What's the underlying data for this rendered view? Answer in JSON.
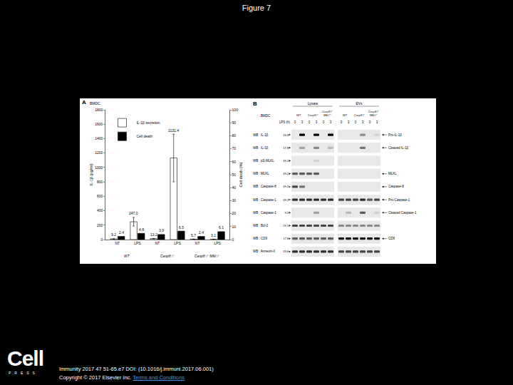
{
  "header": {
    "title": "Figure 7"
  },
  "panel_a": {
    "label": "A",
    "cell_type": "BMDC"
  },
  "chart_data": {
    "type": "bar",
    "categories": [
      "NT",
      "LPS",
      "NT",
      "LPS",
      "NT",
      "LPS"
    ],
    "category_groups": [
      "WT",
      "WT",
      "Casp8⁻/⁻",
      "Casp8⁻/⁻",
      "Casp8⁻/⁻ Mlkl⁻/⁻",
      "Casp8⁻/⁻ Mlkl⁻/⁻"
    ],
    "series": [
      {
        "name": "IL-1β secretion",
        "color": "#ffffff",
        "values": [
          9.2,
          247.0,
          13.2,
          1131.4,
          5.7,
          3.1
        ],
        "value_labels": [
          "9.2",
          "247.0",
          "13.2",
          "1131.4",
          "5.7",
          "3.1"
        ],
        "error": [
          2,
          60,
          3,
          330,
          1,
          1
        ]
      },
      {
        "name": "Cell death",
        "color": "#000000",
        "axis": "y2",
        "values": [
          2.4,
          4.8,
          3.9,
          6.5,
          2.4,
          6.1
        ]
      }
    ],
    "ylabel": "IL-1β (pg/ml)",
    "y2label": "Cell death (%)",
    "ylim": [
      0,
      1800
    ],
    "yticks": [
      0,
      200,
      400,
      600,
      800,
      1000,
      1200,
      1400,
      1600,
      1800
    ],
    "y2lim": [
      0,
      100
    ],
    "y2ticks": [
      0,
      10,
      20,
      30,
      40,
      50,
      60,
      70,
      80,
      90,
      100
    ],
    "data_labels": true,
    "legend": "upper left",
    "grid": false
  },
  "panel_b": {
    "label": "B",
    "cell_type": "BMDC",
    "sections": [
      "Lysate",
      "EVs"
    ],
    "genotypes": [
      [
        "WT"
      ],
      [
        "Casp8⁻/⁻"
      ],
      [
        "Casp8⁻/⁻",
        "Mlkl⁻/⁻"
      ]
    ],
    "timepoint_label": "LPS (h)",
    "timepoints": [
      0,
      3
    ],
    "rows": [
      {
        "antibody": "WB : IL-1β",
        "mw": "33.6",
        "target": "Pro-IL-1β",
        "lysate": [
          0,
          1,
          0,
          1,
          0,
          1
        ],
        "evs": [
          0,
          0,
          0,
          0.4,
          0,
          0.1
        ]
      },
      {
        "antibody": "WB : IL-1β",
        "mw": "17.8",
        "target": "Cleaved IL-1β",
        "lysate": [
          0,
          0.3,
          0,
          0.4,
          0,
          0.2
        ],
        "evs": [
          0,
          0,
          0,
          0.5,
          0,
          0
        ]
      },
      {
        "antibody": "WB : pS-MLKL",
        "mw": "49.2",
        "lysate": [
          0,
          0,
          0,
          0.1,
          0,
          0
        ],
        "evs": [
          0,
          0,
          0,
          0,
          0,
          0
        ]
      },
      {
        "antibody": "WB : MLKL",
        "mw": "49.2",
        "target": "MLKL",
        "lysate": [
          0.6,
          0.6,
          0.6,
          0.6,
          0,
          0
        ],
        "evs": [
          0,
          0,
          0,
          0,
          0,
          0
        ]
      },
      {
        "antibody": "WB : Caspase-8",
        "mw": "49.2",
        "target": "Caspase-8",
        "lysate": [
          0.7,
          0.5,
          0,
          0,
          0,
          0
        ],
        "evs": [
          0,
          0,
          0,
          0,
          0,
          0
        ]
      },
      {
        "antibody": "WB : Caspase-1",
        "mw": "49.2",
        "target": "Pro-Caspase-1",
        "lysate": [
          0.8,
          0.8,
          0.8,
          0.8,
          0.8,
          0.8
        ],
        "evs": [
          0.7,
          0.7,
          0.7,
          0.8,
          0.6,
          0.7
        ]
      },
      {
        "antibody": "WB : Caspase-1",
        "mw": "9.5",
        "target": "Cleaved Caspase-1",
        "lysate": [
          0,
          0,
          0,
          0.3,
          0,
          0
        ],
        "evs": [
          0,
          0.2,
          0,
          0.6,
          0,
          0.1
        ]
      },
      {
        "antibody": "WB : Bcl-2",
        "mw": "29.1",
        "lysate": [
          0.7,
          0.7,
          0.7,
          0.7,
          0.7,
          0.7
        ],
        "evs": [
          0.4,
          0.4,
          0.4,
          0.4,
          0.4,
          0.4
        ]
      },
      {
        "antibody": "WB : CD9",
        "mw": "17.8",
        "target": "CD9",
        "lysate": [
          0.6,
          0.6,
          0.6,
          0.6,
          0.6,
          0.6
        ],
        "evs": [
          0.9,
          0.9,
          0.9,
          0.9,
          0.9,
          0.9
        ]
      },
      {
        "antibody": "WB : Annexin-II",
        "mw": "33.6",
        "lysate": [
          0.8,
          0.8,
          0.8,
          0.8,
          0.8,
          0.8
        ],
        "evs": [
          0.7,
          0.7,
          0.7,
          0.7,
          0.7,
          0.7
        ]
      }
    ]
  },
  "footer": {
    "logo": "Cell",
    "logo_sub": "PRESS",
    "citation": "Immunity 2017 47 51-65.e7 DOI: (10.1016/j.immuni.2017.06.001)",
    "copyright": "Copyright © 2017 Elsevier Inc.",
    "link": "Terms and Conditions"
  }
}
